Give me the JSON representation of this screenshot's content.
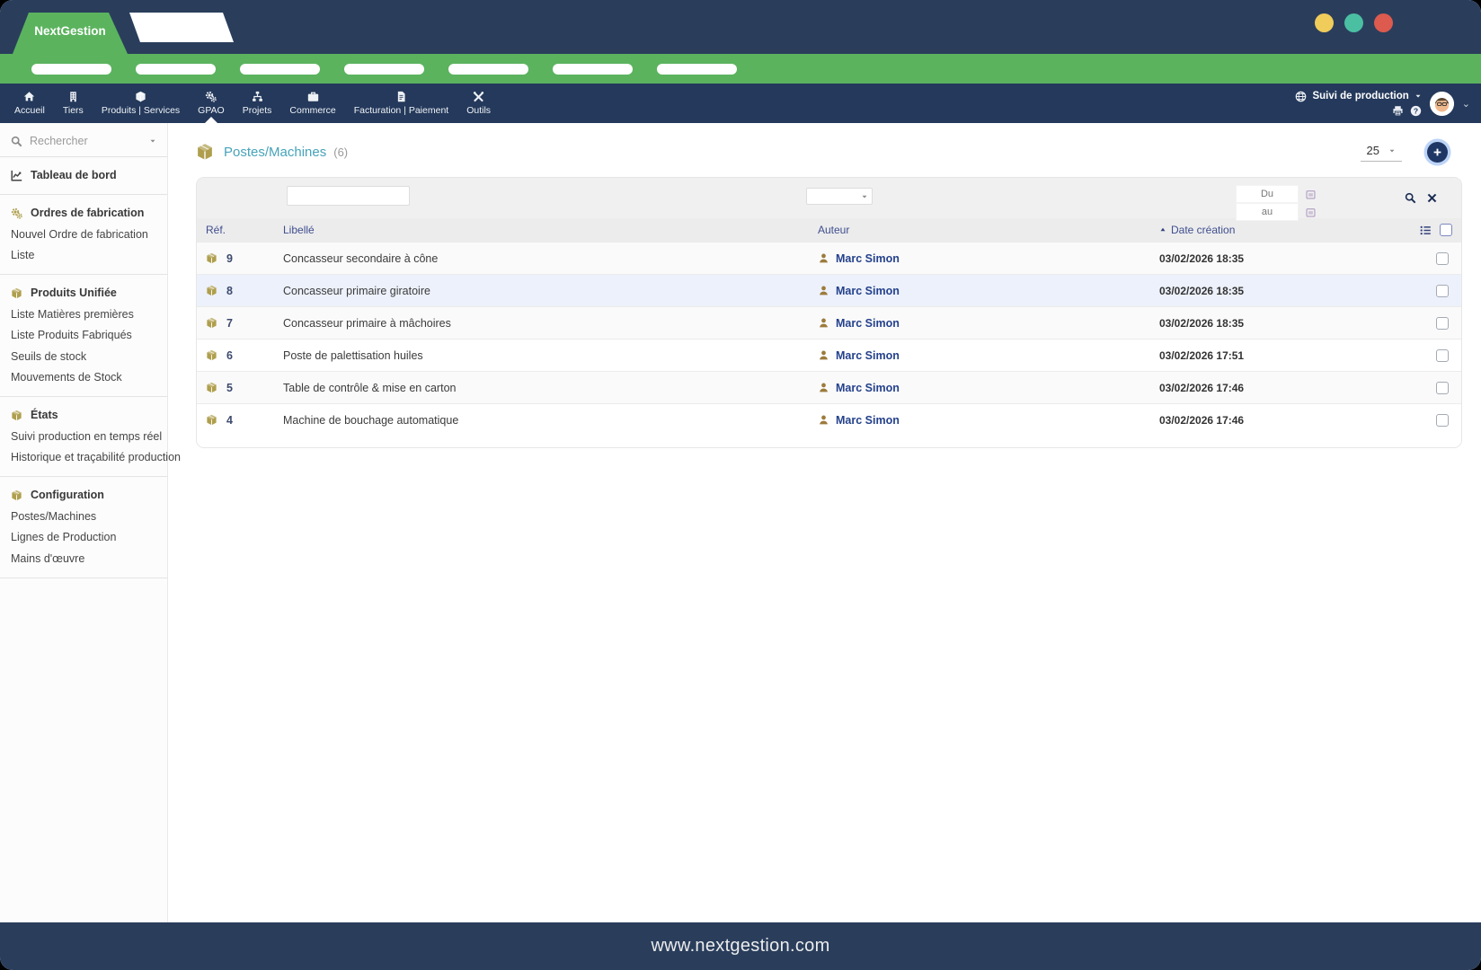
{
  "window": {
    "brand": "NextGestion",
    "traffic_lights": {
      "yellow": "#F0CC5A",
      "teal": "#4BBFA2",
      "red": "#DC5A4E"
    }
  },
  "green_bar": {
    "pill_count": 7
  },
  "navbar": {
    "items": [
      {
        "label": "Accueil",
        "icon": "home-icon",
        "active": false
      },
      {
        "label": "Tiers",
        "icon": "building-icon",
        "active": false
      },
      {
        "label": "Produits | Services",
        "icon": "box-icon",
        "active": false
      },
      {
        "label": "GPAO",
        "icon": "gears-icon",
        "active": true
      },
      {
        "label": "Projets",
        "icon": "sitemap-icon",
        "active": false
      },
      {
        "label": "Commerce",
        "icon": "briefcase-icon",
        "active": false
      },
      {
        "label": "Facturation | Paiement",
        "icon": "invoice-icon",
        "active": false
      },
      {
        "label": "Outils",
        "icon": "tools-icon",
        "active": false
      }
    ],
    "context": {
      "label": "Suivi de production"
    }
  },
  "sidebar": {
    "search_placeholder": "Rechercher",
    "sections": [
      {
        "heading": "Tableau de bord",
        "icon": "chart-icon",
        "icon_color": "#444444",
        "items": []
      },
      {
        "heading": "Ordres de fabrication",
        "icon": "gears-icon",
        "icon_color": "#AF9F4D",
        "items": [
          "Nouvel Ordre de fabrication",
          "Liste"
        ]
      },
      {
        "heading": "Produits Unifiée",
        "icon": "box-icon",
        "icon_color": "#AF9F4D",
        "items": [
          "Liste Matières premières",
          "Liste Produits Fabriqués",
          "Seuils de stock",
          "Mouvements de Stock"
        ]
      },
      {
        "heading": "États",
        "icon": "box-icon",
        "icon_color": "#AF9F4D",
        "items": [
          "Suivi production en temps réel",
          "Historique et traçabilité production"
        ]
      },
      {
        "heading": "Configuration",
        "icon": "box-icon",
        "icon_color": "#AF9F4D",
        "items": [
          "Postes/Machines",
          "Lignes de Production",
          "Mains d'œuvre"
        ]
      }
    ]
  },
  "main": {
    "title": "Postes/Machines",
    "count": "(6)",
    "page_size": "25",
    "filters": {
      "du_placeholder": "Du",
      "au_placeholder": "au"
    },
    "table": {
      "headers": {
        "ref": "Réf.",
        "libelle": "Libellé",
        "auteur": "Auteur",
        "date": "Date création"
      },
      "rows": [
        {
          "ref": "9",
          "libelle": "Concasseur secondaire à cône",
          "auteur": "Marc Simon",
          "date": "03/02/2026 18:35",
          "highlight": false
        },
        {
          "ref": "8",
          "libelle": "Concasseur primaire giratoire",
          "auteur": "Marc Simon",
          "date": "03/02/2026 18:35",
          "highlight": true
        },
        {
          "ref": "7",
          "libelle": "Concasseur primaire à mâchoires",
          "auteur": "Marc Simon",
          "date": "03/02/2026 18:35",
          "highlight": false
        },
        {
          "ref": "6",
          "libelle": "Poste de palettisation huiles",
          "auteur": "Marc Simon",
          "date": "03/02/2026 17:51",
          "highlight": false
        },
        {
          "ref": "5",
          "libelle": "Table de contrôle & mise en carton",
          "auteur": "Marc Simon",
          "date": "03/02/2026 17:46",
          "highlight": false
        },
        {
          "ref": "4",
          "libelle": "Machine de bouchage automatique",
          "auteur": "Marc Simon",
          "date": "03/02/2026 17:46",
          "highlight": false
        }
      ]
    }
  },
  "footer": {
    "url": "www.nextgestion.com"
  },
  "colors": {
    "navy": "#2A3E5C",
    "green": "#5BB35E",
    "gold": "#AF9F4D",
    "accent_teal": "#46A3B9"
  }
}
